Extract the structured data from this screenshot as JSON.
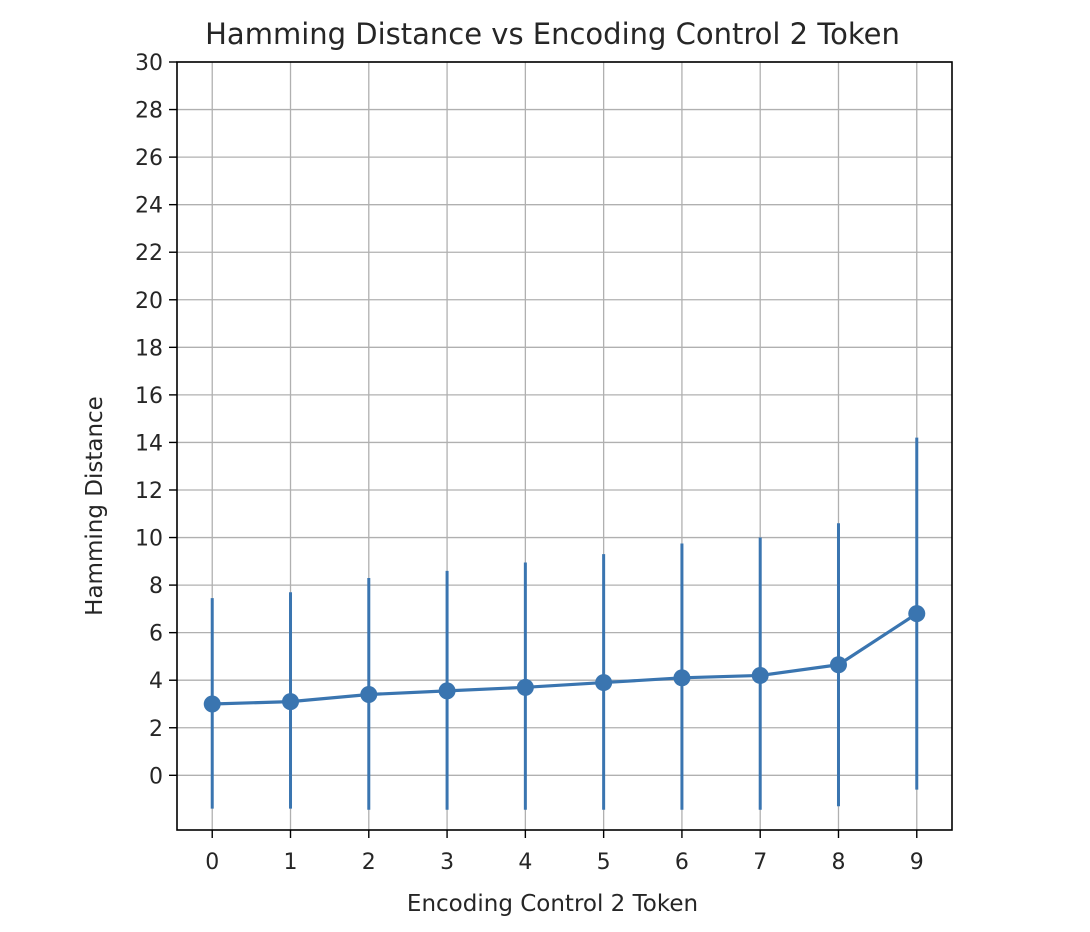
{
  "chart_data": {
    "type": "line",
    "title": "Hamming Distance vs Encoding Control 2 Token",
    "xlabel": "Encoding Control 2 Token",
    "ylabel": "Hamming Distance",
    "x": [
      0,
      1,
      2,
      3,
      4,
      5,
      6,
      7,
      8,
      9
    ],
    "xticks": [
      "0",
      "1",
      "2",
      "3",
      "4",
      "5",
      "6",
      "7",
      "8",
      "9"
    ],
    "yticks": [
      0,
      2,
      4,
      6,
      8,
      10,
      12,
      14,
      16,
      18,
      20,
      22,
      24,
      26,
      28,
      30
    ],
    "xlim": [
      -0.45,
      9.45
    ],
    "ylim": [
      -2.3,
      30
    ],
    "grid": true,
    "series": [
      {
        "values": [
          3.0,
          3.1,
          3.4,
          3.55,
          3.7,
          3.9,
          4.1,
          4.2,
          4.65,
          6.8
        ],
        "error_low": [
          -1.4,
          -1.4,
          -1.45,
          -1.45,
          -1.45,
          -1.45,
          -1.45,
          -1.45,
          -1.3,
          -0.6
        ],
        "error_high": [
          7.45,
          7.7,
          8.3,
          8.6,
          8.95,
          9.3,
          9.75,
          10.0,
          10.6,
          14.2
        ],
        "color": "#3a75b0"
      }
    ]
  }
}
